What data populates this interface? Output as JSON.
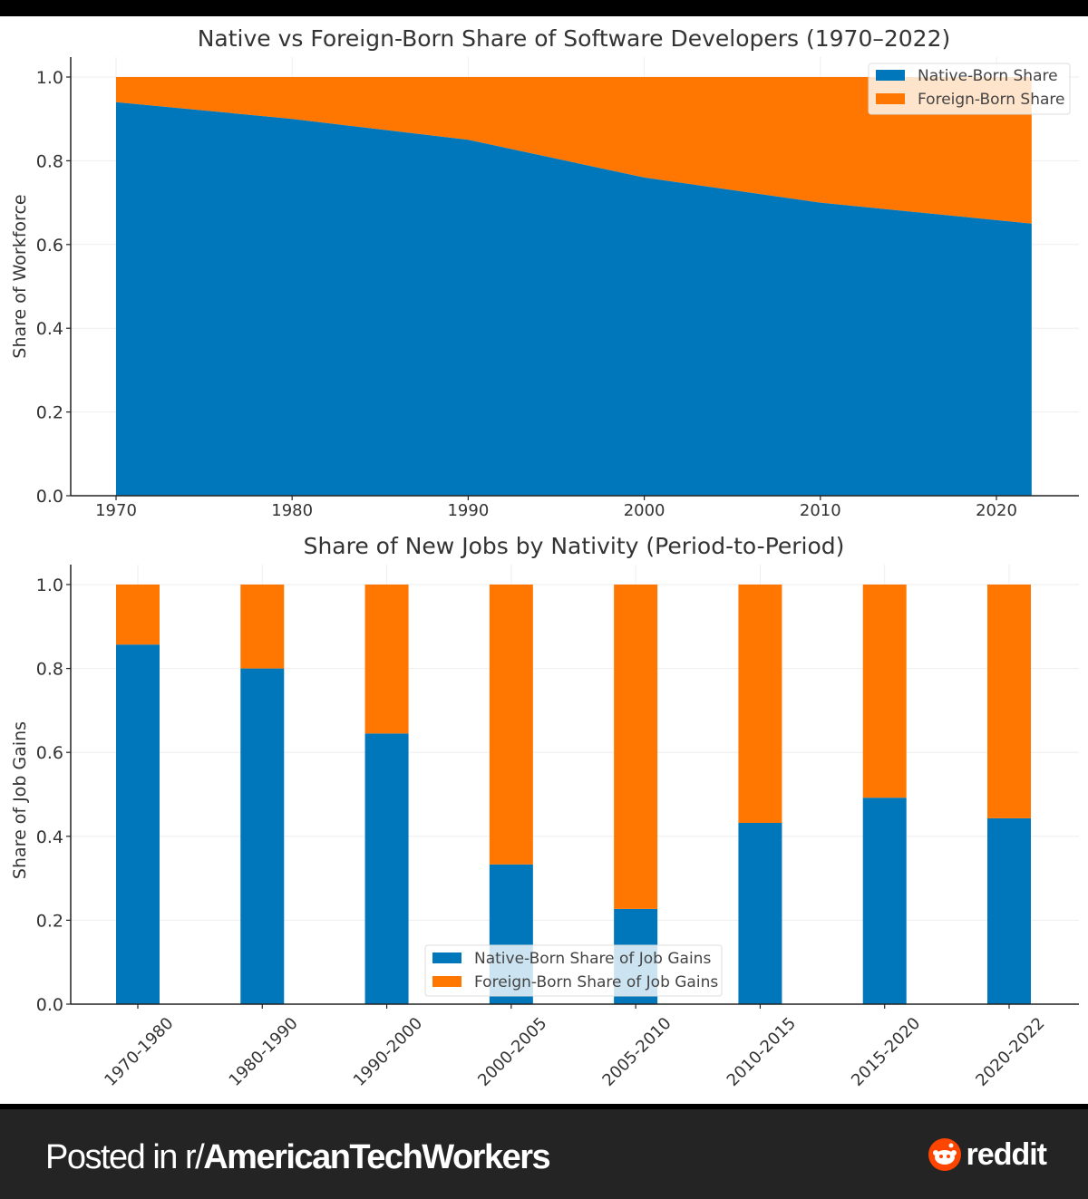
{
  "colors": {
    "native": "#0077bb",
    "foreign": "#ff7700",
    "axis": "#222222",
    "text": "#333333",
    "grid": "#eeeeee"
  },
  "chart_data": [
    {
      "type": "area",
      "title": "Native vs Foreign-Born Share of Software Developers (1970–2022)",
      "xlabel": "",
      "ylabel": "Share of Workforce",
      "x": [
        1970,
        1980,
        1990,
        2000,
        2010,
        2022
      ],
      "series": [
        {
          "name": "Native-Born Share",
          "values": [
            0.94,
            0.9,
            0.85,
            0.76,
            0.7,
            0.65
          ]
        },
        {
          "name": "Foreign-Born Share",
          "values": [
            0.06,
            0.1,
            0.15,
            0.24,
            0.3,
            0.35
          ]
        }
      ],
      "stacked": true,
      "xlim": [
        1967.6,
        2027.5
      ],
      "ylim": [
        0,
        1.05
      ],
      "xticks": [
        "1970",
        "1980",
        "1990",
        "2000",
        "2010",
        "2020"
      ],
      "yticks": [
        "0.0",
        "0.2",
        "0.4",
        "0.6",
        "0.8",
        "1.0"
      ],
      "grid": true,
      "legend": "top-right"
    },
    {
      "type": "bar",
      "title": "Share of New Jobs by Nativity (Period-to-Period)",
      "xlabel": "",
      "ylabel": "Share of Job Gains",
      "categories": [
        "1970-1980",
        "1980-1990",
        "1990-2000",
        "2000-2005",
        "2005-2010",
        "2010-2015",
        "2015-2020",
        "2020-2022"
      ],
      "series": [
        {
          "name": "Native-Born Share of Job Gains",
          "values": [
            0.857,
            0.8,
            0.645,
            0.333,
            0.227,
            0.432,
            0.492,
            0.443
          ]
        },
        {
          "name": "Foreign-Born Share of Job Gains",
          "values": [
            0.143,
            0.2,
            0.355,
            0.667,
            0.773,
            0.568,
            0.508,
            0.557
          ]
        }
      ],
      "stacked": true,
      "ylim": [
        0,
        1.05
      ],
      "yticks": [
        "0.0",
        "0.2",
        "0.4",
        "0.6",
        "0.8",
        "1.0"
      ],
      "grid": true,
      "legend": "bottom-center"
    }
  ],
  "footer": {
    "posted_prefix": "Posted in r/",
    "subreddit": "AmericanTechWorkers",
    "brand": "reddit"
  }
}
